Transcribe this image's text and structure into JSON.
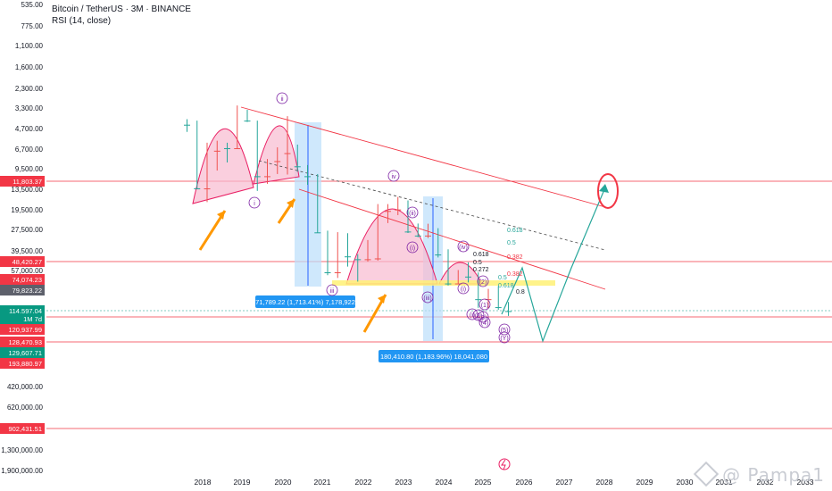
{
  "header": {
    "title": "Bitcoin / TetherUS · 3M · BINANCE",
    "indicator": "RSI (14, close)"
  },
  "watermark": "@ Pampa1",
  "colors": {
    "bull": "#26a69a",
    "bear": "#ef5350",
    "level_line": "#f23645",
    "measure_fill": "#bbdefb",
    "measure_line": "#2962ff",
    "arch_fill": "#f8bbd0",
    "arch_line": "#e91e63",
    "highlight_band": "#fff176",
    "arrow_orange": "#ff9800",
    "projection": "#26a69a",
    "wave_label": "#7b1fa2"
  },
  "chart_data": {
    "type": "candlestick",
    "y_scale": "custom",
    "y_axis_ticks": [
      "535.00",
      "775.00",
      "1,100.00",
      "1,600.00",
      "2,300.00",
      "3,300.00",
      "4,700.00",
      "6,700.00",
      "9,500.00",
      "13,500.00",
      "19,500.00",
      "27,500.00",
      "39,500.00",
      "57,000.00",
      "420,000.00",
      "620,000.00",
      "1,300,000.00",
      "1,900,000.00"
    ],
    "x_axis_ticks": [
      "2018",
      "2019",
      "2020",
      "2021",
      "2022",
      "2023",
      "2024",
      "2025",
      "2026",
      "2027",
      "2028",
      "2029",
      "2030",
      "2031",
      "2032",
      "2033"
    ],
    "price_badges": [
      {
        "label": "11,803.37",
        "color": "#f23645"
      },
      {
        "label": "48,420.27",
        "color": "#f23645"
      },
      {
        "label": "74,074.23",
        "color": "#f23645"
      },
      {
        "label": "79,823.22",
        "color": "#5d606b"
      },
      {
        "label": "114,597.04",
        "color": "#089981"
      },
      {
        "label": "1M 7d",
        "color": "#089981"
      },
      {
        "label": "120,937.99",
        "color": "#f23645"
      },
      {
        "label": "128,470.93",
        "color": "#f23645"
      },
      {
        "label": "129,607.71",
        "color": "#089981"
      },
      {
        "label": "193,880.97",
        "color": "#f23645"
      },
      {
        "label": "902,431.51",
        "color": "#f23645"
      }
    ],
    "measure_labels": [
      "71,789.22 (1,713.41%) 7,178,922",
      "180,410.80 (1,183.96%) 18,041,080"
    ],
    "fib_labels": [
      "0.618",
      "0.5",
      "0.382",
      "0.618",
      "0.5",
      "0.382",
      "0.272",
      "0.5",
      "0.618",
      "0.8"
    ],
    "wave_labels": [
      "ii",
      "iv",
      "(ii)",
      "(i)",
      "(iii)",
      "(iv)",
      "(i)",
      "(i)",
      "(2)",
      "(1)",
      "(2)",
      "(3)",
      "(4)",
      "(5)",
      "(Y)",
      "i",
      "iii"
    ],
    "candles_ohlc_label_style": "3-month",
    "candles": [
      {
        "t": "2017 Q3",
        "o": 4300,
        "h": 4980,
        "l": 4000,
        "c": 4400
      },
      {
        "t": "2017 Q4",
        "o": 4400,
        "h": 13500,
        "l": 4100,
        "c": 13300
      },
      {
        "t": "2018 Q1",
        "o": 13300,
        "h": 17000,
        "l": 6000,
        "c": 6900
      },
      {
        "t": "2018 Q2",
        "o": 6900,
        "h": 9800,
        "l": 5800,
        "c": 6400
      },
      {
        "t": "2018 Q3",
        "o": 6400,
        "h": 8500,
        "l": 6000,
        "c": 6600
      },
      {
        "t": "2018 Q4",
        "o": 6600,
        "h": 6700,
        "l": 3150,
        "c": 3700
      },
      {
        "t": "2019 Q1",
        "o": 3700,
        "h": 4200,
        "l": 3400,
        "c": 4100
      },
      {
        "t": "2019 Q2",
        "o": 4100,
        "h": 13900,
        "l": 4100,
        "c": 10800
      },
      {
        "t": "2019 Q3",
        "o": 10800,
        "h": 12300,
        "l": 8000,
        "c": 8300
      },
      {
        "t": "2019 Q4",
        "o": 8300,
        "h": 10400,
        "l": 6500,
        "c": 7200
      },
      {
        "t": "2020 Q1",
        "o": 7200,
        "h": 10500,
        "l": 3800,
        "c": 6400
      },
      {
        "t": "2020 Q2",
        "o": 6400,
        "h": 10000,
        "l": 6200,
        "c": 9100
      },
      {
        "t": "2020 Q3",
        "o": 9100,
        "h": 12500,
        "l": 8900,
        "c": 10800
      },
      {
        "t": "2020 Q4",
        "o": 10800,
        "h": 29000,
        "l": 10400,
        "c": 28900
      },
      {
        "t": "2021 Q1",
        "o": 28900,
        "h": 61800,
        "l": 28100,
        "c": 58800
      },
      {
        "t": "2021 Q2",
        "o": 58800,
        "h": 64800,
        "l": 28800,
        "c": 35000
      },
      {
        "t": "2021 Q3",
        "o": 35000,
        "h": 53000,
        "l": 29300,
        "c": 43800
      },
      {
        "t": "2021 Q4",
        "o": 43800,
        "h": 69000,
        "l": 42000,
        "c": 46200
      },
      {
        "t": "2022 Q1",
        "o": 46200,
        "h": 48200,
        "l": 32900,
        "c": 45500
      },
      {
        "t": "2022 Q2",
        "o": 45500,
        "h": 47400,
        "l": 17600,
        "c": 19900
      },
      {
        "t": "2022 Q3",
        "o": 19900,
        "h": 24600,
        "l": 17600,
        "c": 19400
      },
      {
        "t": "2022 Q4",
        "o": 19400,
        "h": 21400,
        "l": 15500,
        "c": 16500
      },
      {
        "t": "2023 Q1",
        "o": 16500,
        "h": 29200,
        "l": 16500,
        "c": 28500
      },
      {
        "t": "2023 Q2",
        "o": 28500,
        "h": 31400,
        "l": 24800,
        "c": 30500
      },
      {
        "t": "2023 Q3",
        "o": 30500,
        "h": 31800,
        "l": 24900,
        "c": 27000
      },
      {
        "t": "2023 Q4",
        "o": 27000,
        "h": 44700,
        "l": 26900,
        "c": 42300
      },
      {
        "t": "2024 Q1",
        "o": 42300,
        "h": 73800,
        "l": 38500,
        "c": 71300
      },
      {
        "t": "2024 Q2",
        "o": 71300,
        "h": 72000,
        "l": 56500,
        "c": 62700
      },
      {
        "t": "2024 Q3",
        "o": 62700,
        "h": 70000,
        "l": 49000,
        "c": 63300
      },
      {
        "t": "2024 Q4",
        "o": 63300,
        "h": 108300,
        "l": 58900,
        "c": 93400
      },
      {
        "t": "2025 Q1",
        "o": 93400,
        "h": 109600,
        "l": 78200,
        "c": 82500
      },
      {
        "t": "2025 Q2",
        "o": 82500,
        "h": 112000,
        "l": 74500,
        "c": 107100
      },
      {
        "t": "2025 Q3",
        "o": 107100,
        "h": 124500,
        "l": 98000,
        "c": 114600
      }
    ]
  }
}
